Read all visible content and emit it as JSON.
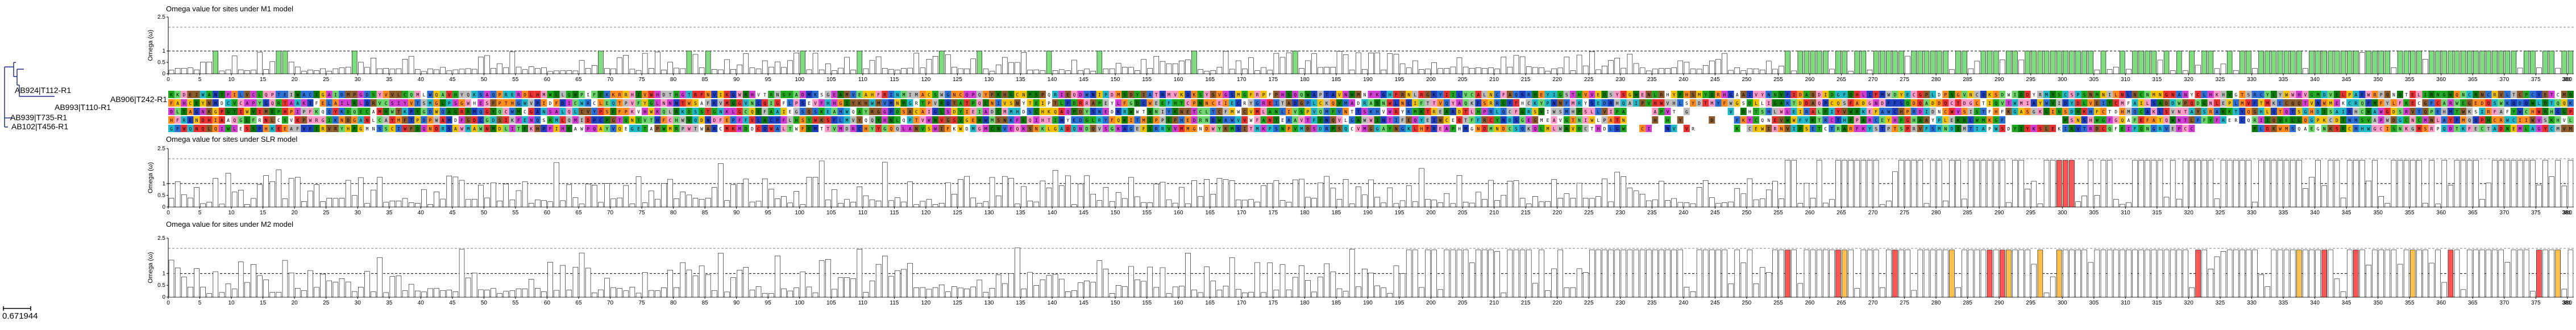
{
  "colors": {
    "m1_bar_positive": "#7fdc7f",
    "slr_bar_positive": "#ff5555",
    "m2_bar_positive_strong": "#ff5555",
    "m2_bar_positive_weak": "#ffc04d",
    "bar_normal": "#ffffff",
    "bar_stroke": "#000000",
    "tree_line": "#1f2f8f"
  },
  "tree": {
    "leaves": [
      "AB924|T112-R1",
      "AB906|T242-R1",
      "AB993|T110-R1",
      "AB939|T735-R1",
      "AB102|T456-R1"
    ],
    "scale_label": "0.671944"
  },
  "alignment": {
    "rows": 5,
    "sites": 381,
    "palette": [
      "#1e3fbf",
      "#2a6fd6",
      "#0b7a0b",
      "#1da81d",
      "#ff8c1a",
      "#f2c200",
      "#e83030",
      "#d23cd2",
      "#1fb8c8",
      "#ff9ac8",
      "#bcbcbc",
      "#ffffff",
      "#8a5a2b",
      "#6bd46b"
    ]
  },
  "chart_data": [
    {
      "type": "bar",
      "title": "Omega value for sites under M1 model",
      "ylabel": "Omega (ω)",
      "ylim": [
        0,
        2.5
      ],
      "yticks": [
        "0",
        "0.5",
        "1",
        "2.5"
      ],
      "threshold": 1,
      "xtick_step": 5,
      "xmax": 381,
      "positive_color": "m1_bar_positive",
      "generator": "m1"
    },
    {
      "type": "bar",
      "title": "Omega value for sites under SLR model",
      "ylabel": "Omega (ω)",
      "ylim": [
        0,
        2.5
      ],
      "yticks": [
        "0",
        "0.5",
        "1",
        "2.5"
      ],
      "threshold": 1,
      "xtick_step": 5,
      "xmax": 381,
      "positive_color": "slr_bar_positive",
      "generator": "slr"
    },
    {
      "type": "bar",
      "title": "Omega value for sites under M2 model",
      "ylabel": "Omega (ω)",
      "ylim": [
        0,
        2.5
      ],
      "yticks": [
        "0",
        "0.5",
        "1",
        "2.5"
      ],
      "threshold": 1,
      "xtick_step": 5,
      "xmax": 381,
      "positive_color": "m2_bar_positive_strong",
      "generator": "m2"
    }
  ]
}
